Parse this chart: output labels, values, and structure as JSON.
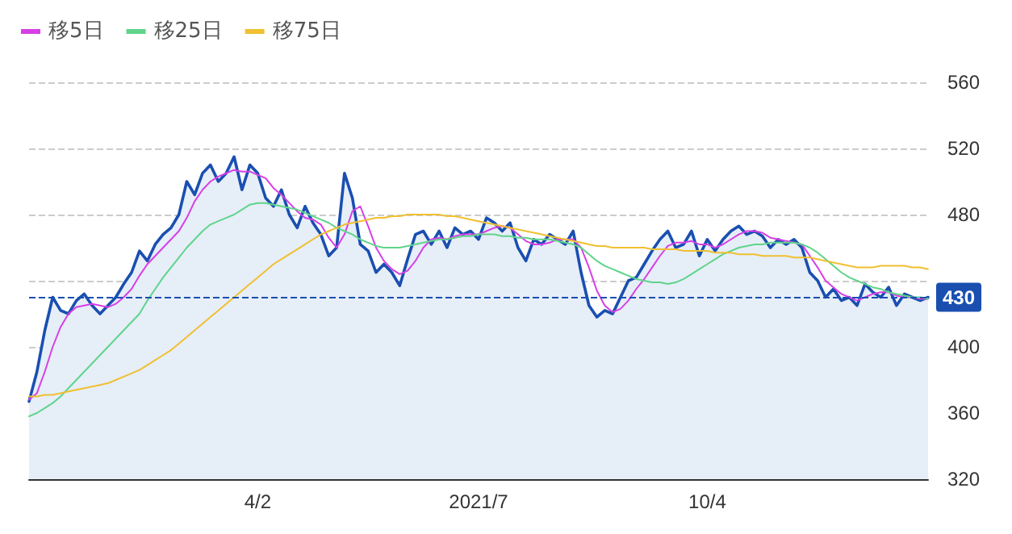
{
  "chart_data": {
    "type": "line",
    "categories": [
      null,
      null,
      null,
      null,
      null,
      null,
      null,
      null,
      null,
      null,
      null,
      null,
      null,
      null,
      null,
      null,
      null,
      null,
      null,
      null,
      null,
      null,
      null,
      null,
      null,
      null,
      null,
      null,
      null,
      "4/2",
      null,
      null,
      null,
      null,
      null,
      null,
      null,
      null,
      null,
      null,
      null,
      null,
      null,
      null,
      null,
      null,
      null,
      null,
      null,
      null,
      null,
      null,
      null,
      null,
      null,
      null,
      null,
      "2021/7",
      null,
      null,
      null,
      null,
      null,
      null,
      null,
      null,
      null,
      null,
      null,
      null,
      null,
      null,
      null,
      null,
      null,
      null,
      null,
      null,
      null,
      null,
      null,
      null,
      null,
      null,
      null,
      null,
      "10/4",
      null,
      null,
      null,
      null,
      null,
      null,
      null,
      null,
      null,
      null,
      null,
      null,
      null,
      null,
      null,
      null,
      null,
      null,
      null,
      null,
      null,
      null,
      null,
      null,
      null,
      null,
      null,
      null
    ],
    "series": [
      {
        "type": "area",
        "color": "#1a4fb0",
        "values": [
          367,
          385,
          410,
          430,
          422,
          420,
          428,
          432,
          425,
          420,
          425,
          430,
          438,
          445,
          458,
          452,
          462,
          468,
          472,
          480,
          500,
          492,
          505,
          510,
          500,
          505,
          515,
          495,
          510,
          505,
          490,
          485,
          495,
          480,
          472,
          485,
          475,
          468,
          455,
          460,
          505,
          490,
          462,
          458,
          445,
          450,
          445,
          437,
          453,
          468,
          470,
          462,
          470,
          460,
          472,
          468,
          470,
          465,
          478,
          475,
          470,
          475,
          460,
          452,
          465,
          462,
          468,
          465,
          462,
          470,
          445,
          425,
          418,
          422,
          420,
          430,
          440,
          442,
          450,
          458,
          465,
          470,
          460,
          462,
          470,
          455,
          465,
          458,
          465,
          470,
          473,
          468,
          470,
          467,
          460,
          465,
          462,
          465,
          460,
          445,
          440,
          430,
          435,
          428,
          430,
          425,
          438,
          433,
          430,
          436,
          425,
          432,
          430,
          428,
          430
        ]
      },
      {
        "name": "移5日",
        "color": "#d63fe6",
        "values": [
          368,
          372,
          385,
          400,
          412,
          420,
          424,
          425,
          426,
          425,
          424,
          426,
          430,
          435,
          443,
          450,
          455,
          460,
          465,
          470,
          478,
          488,
          495,
          500,
          503,
          505,
          507,
          506,
          506,
          504,
          502,
          496,
          492,
          487,
          482,
          478,
          477,
          474,
          466,
          460,
          468,
          482,
          485,
          473,
          460,
          452,
          447,
          444,
          446,
          452,
          460,
          465,
          466,
          465,
          467,
          468,
          468,
          468,
          470,
          472,
          473,
          472,
          468,
          464,
          462,
          462,
          463,
          465,
          465,
          465,
          460,
          448,
          434,
          425,
          421,
          423,
          428,
          435,
          441,
          448,
          455,
          461,
          463,
          463,
          464,
          462,
          462,
          460,
          462,
          465,
          468,
          470,
          470,
          469,
          466,
          465,
          464,
          463,
          462,
          455,
          448,
          440,
          436,
          432,
          430,
          428,
          430,
          432,
          433,
          433,
          431,
          430,
          430,
          429,
          429
        ]
      },
      {
        "name": "移25日",
        "color": "#5fd48a",
        "values": [
          358,
          360,
          363,
          366,
          370,
          375,
          380,
          385,
          390,
          395,
          400,
          405,
          410,
          415,
          420,
          428,
          435,
          442,
          448,
          454,
          460,
          465,
          470,
          474,
          476,
          478,
          480,
          483,
          486,
          487,
          487,
          486,
          485,
          484,
          483,
          481,
          479,
          477,
          475,
          472,
          470,
          468,
          465,
          463,
          461,
          460,
          460,
          460,
          461,
          462,
          463,
          464,
          465,
          465,
          466,
          467,
          467,
          468,
          468,
          468,
          467,
          467,
          466,
          466,
          465,
          465,
          465,
          464,
          463,
          462,
          460,
          456,
          452,
          449,
          447,
          445,
          443,
          441,
          440,
          439,
          439,
          438,
          439,
          441,
          444,
          447,
          450,
          453,
          456,
          458,
          460,
          461,
          462,
          462,
          463,
          463,
          463,
          463,
          462,
          460,
          457,
          453,
          449,
          445,
          442,
          440,
          438,
          436,
          435,
          433,
          432,
          431,
          430,
          430,
          429
        ]
      },
      {
        "name": "移75日",
        "color": "#f0c030",
        "values": [
          370,
          370,
          371,
          371,
          372,
          373,
          374,
          375,
          376,
          377,
          378,
          380,
          382,
          384,
          386,
          389,
          392,
          395,
          398,
          402,
          406,
          410,
          414,
          418,
          422,
          426,
          430,
          434,
          438,
          442,
          446,
          450,
          453,
          456,
          459,
          462,
          465,
          468,
          470,
          472,
          474,
          475,
          476,
          477,
          478,
          478,
          479,
          479,
          480,
          480,
          480,
          480,
          480,
          479,
          479,
          478,
          477,
          476,
          475,
          474,
          473,
          472,
          471,
          470,
          469,
          468,
          467,
          466,
          465,
          464,
          463,
          462,
          461,
          461,
          460,
          460,
          460,
          460,
          460,
          459,
          459,
          459,
          459,
          458,
          458,
          458,
          458,
          457,
          457,
          457,
          456,
          456,
          456,
          455,
          455,
          455,
          455,
          454,
          454,
          454,
          453,
          452,
          451,
          450,
          449,
          448,
          448,
          448,
          449,
          449,
          449,
          449,
          448,
          448,
          447
        ]
      }
    ],
    "ylim": [
      320,
      560
    ],
    "yticks": [
      320,
      360,
      400,
      {
        "value": 440,
        "label": null
      },
      480,
      520,
      560
    ],
    "grid": "y",
    "legend": "top left",
    "marker": "none",
    "ref_lines": [
      {
        "axis": "y",
        "value": 430,
        "label": "430",
        "color": "#1a4fb0",
        "line_style": "dashed"
      }
    ]
  }
}
